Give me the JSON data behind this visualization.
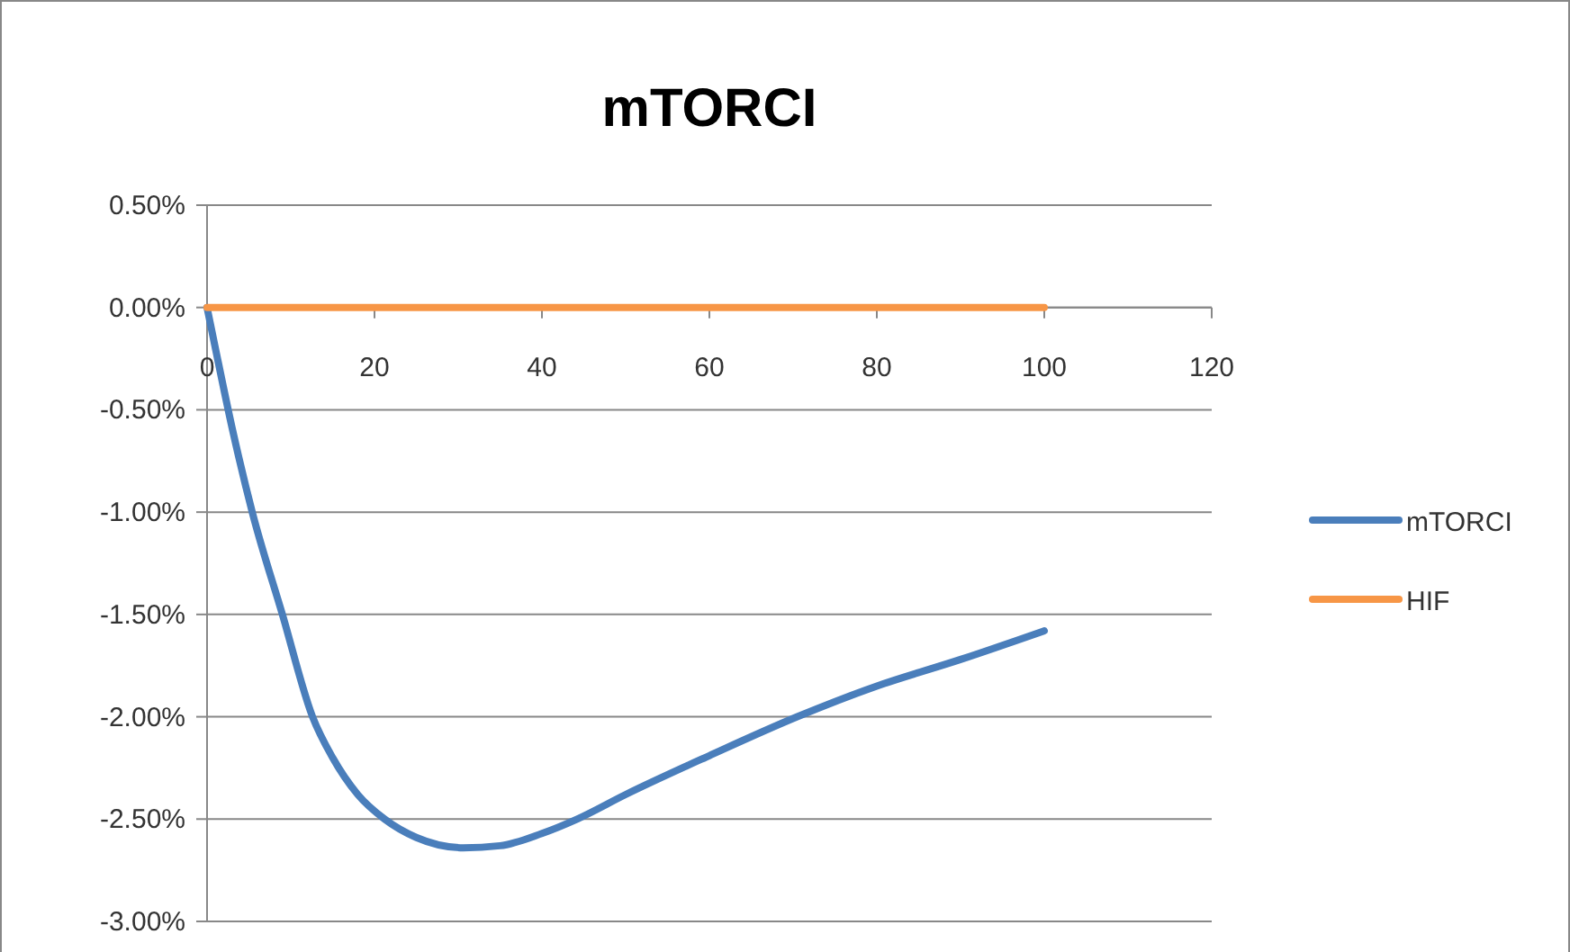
{
  "chart_data": {
    "type": "line",
    "title": "mTORCI",
    "xlim": [
      0,
      120
    ],
    "xticks": [
      0,
      20,
      40,
      60,
      80,
      100,
      120
    ],
    "ylim": [
      -3,
      0.5
    ],
    "yticks": [
      {
        "value": 0.5,
        "label": "0.50%"
      },
      {
        "value": 0,
        "label": "0.00%"
      },
      {
        "value": -0.5,
        "label": "-0.50%"
      },
      {
        "value": -1,
        "label": "-1.00%"
      },
      {
        "value": -1.5,
        "label": "-1.50%"
      },
      {
        "value": -2,
        "label": "-2.00%"
      },
      {
        "value": -2.5,
        "label": "-2.50%"
      },
      {
        "value": -3,
        "label": "-3.00%"
      }
    ],
    "grid": "y",
    "legend": "right",
    "line_style": "solid",
    "series": [
      {
        "name": "mTORCI",
        "color": "#4a7ebb",
        "x": [
          0,
          1,
          3,
          5.4,
          9,
          12.6,
          15,
          18,
          21.2,
          25,
          30.6,
          35,
          40,
          44.2,
          50,
          60,
          70.5,
          80,
          90,
          100
        ],
        "values": [
          0,
          -0.2,
          -0.59,
          -1,
          -1.5,
          -2,
          -2.2,
          -2.38,
          -2.5,
          -2.59,
          -2.64,
          -2.63,
          -2.57,
          -2.5,
          -2.38,
          -2.19,
          -2,
          -1.85,
          -1.72,
          -1.58
        ]
      },
      {
        "name": "HIF",
        "color": "#f79646",
        "x": [
          0,
          100
        ],
        "values": [
          0,
          0
        ]
      }
    ]
  }
}
